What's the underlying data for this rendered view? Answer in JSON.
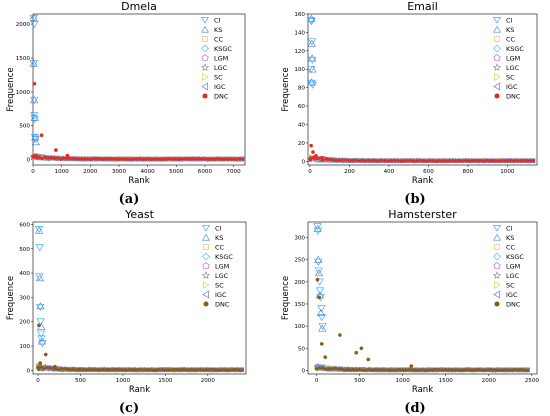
{
  "legend_labels": [
    "CI",
    "KS",
    "CC",
    "KSGC",
    "LGM",
    "LGC",
    "SC",
    "IGC",
    "DNC"
  ],
  "legend_symbols": [
    "triangle-down",
    "triangle-up",
    "square",
    "diamond",
    "pentagon",
    "star",
    "triangle-right",
    "triangle-left",
    "circle-filled"
  ],
  "colors": {
    "CI": "#1fa2ff",
    "KS": "#4b7bd6",
    "CC": "#e3c24a",
    "KSGC": "#2ec9b6",
    "LGM": "#c84fd6",
    "LGC": "#7d7d7d",
    "SC": "#c6d635",
    "IGC": "#6b5fc8"
  },
  "chart_data": [
    {
      "type": "scatter",
      "title": "Dmela",
      "caption": "(a)",
      "xlabel": "Rank",
      "ylabel": "Frequence",
      "xlim": [
        0,
        7400
      ],
      "ylim": [
        -80,
        2150
      ],
      "xticks": [
        0,
        1000,
        2000,
        3000,
        4000,
        5000,
        6000,
        7000
      ],
      "yticks": [
        0,
        500,
        1000,
        1500,
        2000
      ],
      "x_max": 7300,
      "dnc_color": "#e8291c",
      "series": [
        {
          "name": "CI",
          "points": [
            [
              30,
              2090
            ],
            [
              50,
              2000
            ],
            [
              30,
              1420
            ],
            [
              45,
              880
            ],
            [
              40,
              650
            ],
            [
              60,
              600
            ],
            [
              70,
              330
            ],
            [
              90,
              300
            ]
          ]
        },
        {
          "name": "KS",
          "points": [
            [
              20,
              2100
            ],
            [
              25,
              1420
            ],
            [
              40,
              880
            ],
            [
              60,
              620
            ],
            [
              80,
              330
            ],
            [
              100,
              260
            ]
          ]
        },
        {
          "name": "DNC",
          "points": [
            [
              50,
              1120
            ],
            [
              300,
              360
            ],
            [
              800,
              140
            ],
            [
              1200,
              60
            ],
            [
              20,
              40
            ],
            [
              150,
              30
            ]
          ]
        }
      ]
    },
    {
      "type": "scatter",
      "title": "Email",
      "caption": "(b)",
      "xlabel": "Rank",
      "ylabel": "Frequence",
      "xlim": [
        -10,
        1150
      ],
      "ylim": [
        -4,
        160
      ],
      "xticks": [
        0,
        200,
        400,
        600,
        800,
        1000
      ],
      "yticks": [
        0,
        20,
        40,
        60,
        80,
        100,
        120,
        140,
        160
      ],
      "x_max": 1130,
      "dnc_color": "#e8291c",
      "series": [
        {
          "name": "CI",
          "points": [
            [
              5,
              153
            ],
            [
              8,
              152
            ],
            [
              10,
              130
            ],
            [
              12,
              110
            ],
            [
              6,
              100
            ],
            [
              9,
              85
            ],
            [
              14,
              83
            ]
          ]
        },
        {
          "name": "KS",
          "points": [
            [
              7,
              155
            ],
            [
              9,
              128
            ],
            [
              11,
              112
            ],
            [
              13,
              100
            ],
            [
              8,
              86
            ]
          ]
        },
        {
          "name": "DNC",
          "points": [
            [
              6,
              17
            ],
            [
              15,
              10
            ],
            [
              30,
              6
            ],
            [
              60,
              4
            ],
            [
              2,
              2
            ]
          ]
        }
      ]
    },
    {
      "type": "scatter",
      "title": "Yeast",
      "caption": "(c)",
      "xlabel": "Rank",
      "ylabel": "Frequence",
      "xlim": [
        -60,
        2450
      ],
      "ylim": [
        -15,
        610
      ],
      "xticks": [
        0,
        500,
        1000,
        1500,
        2000
      ],
      "yticks": [
        0,
        100,
        200,
        300,
        400,
        500,
        600
      ],
      "x_max": 2400,
      "dnc_color": "#8b5a1a",
      "series": [
        {
          "name": "CI",
          "points": [
            [
              10,
              580
            ],
            [
              20,
              505
            ],
            [
              15,
              385
            ],
            [
              25,
              260
            ],
            [
              30,
              200
            ],
            [
              35,
              150
            ],
            [
              40,
              130
            ],
            [
              50,
              110
            ]
          ]
        },
        {
          "name": "KS",
          "points": [
            [
              12,
              575
            ],
            [
              22,
              380
            ],
            [
              28,
              265
            ],
            [
              38,
              180
            ],
            [
              45,
              120
            ]
          ]
        },
        {
          "name": "DNC",
          "points": [
            [
              10,
              185
            ],
            [
              90,
              65
            ],
            [
              25,
              30
            ],
            [
              200,
              15
            ],
            [
              5,
              5
            ]
          ]
        }
      ]
    },
    {
      "type": "scatter",
      "title": "Hamsterster",
      "caption": "(d)",
      "xlabel": "Rank",
      "ylabel": "Frequence",
      "xlim": [
        -100,
        2560
      ],
      "ylim": [
        -8,
        335
      ],
      "xticks": [
        0,
        500,
        1000,
        1500,
        2000,
        2500
      ],
      "yticks": [
        0,
        50,
        100,
        150,
        200,
        250,
        300
      ],
      "x_max": 2450,
      "dnc_color": "#8b5a1a",
      "series": [
        {
          "name": "CI",
          "points": [
            [
              10,
              325
            ],
            [
              15,
              315
            ],
            [
              20,
              245
            ],
            [
              25,
              225
            ],
            [
              35,
              200
            ],
            [
              40,
              180
            ],
            [
              45,
              165
            ],
            [
              55,
              140
            ],
            [
              60,
              120
            ],
            [
              70,
              100
            ]
          ]
        },
        {
          "name": "KS",
          "points": [
            [
              12,
              320
            ],
            [
              18,
              250
            ],
            [
              28,
              220
            ],
            [
              38,
              170
            ],
            [
              50,
              130
            ],
            [
              65,
              95
            ]
          ]
        },
        {
          "name": "DNC",
          "points": [
            [
              10,
              205
            ],
            [
              30,
              165
            ],
            [
              270,
              80
            ],
            [
              460,
              40
            ],
            [
              520,
              50
            ],
            [
              600,
              25
            ],
            [
              1100,
              10
            ],
            [
              60,
              60
            ],
            [
              100,
              30
            ]
          ]
        }
      ]
    }
  ]
}
